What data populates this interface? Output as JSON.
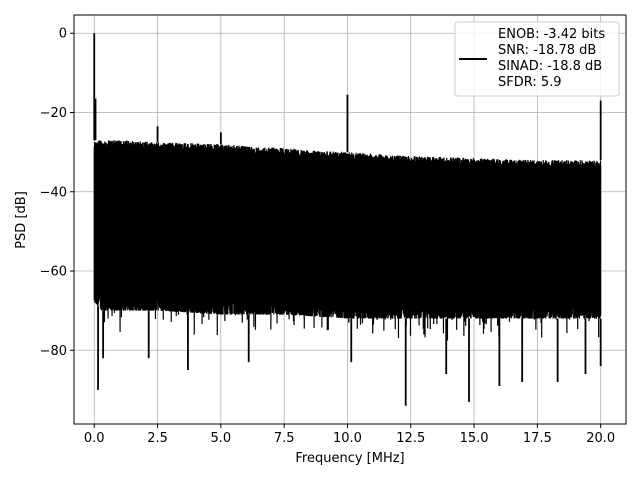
{
  "chart_data": {
    "type": "line",
    "title": "",
    "xlabel": "Frequency [MHz]",
    "ylabel": "PSD [dB]",
    "xlim": [
      -0.8,
      21.0
    ],
    "ylim": [
      -98.6,
      4.6
    ],
    "x_ticks": [
      0.0,
      2.5,
      5.0,
      7.5,
      10.0,
      12.5,
      15.0,
      17.5,
      20.0
    ],
    "x_tick_labels": [
      "0.0",
      "2.5",
      "5.0",
      "7.5",
      "10.0",
      "12.5",
      "15.0",
      "17.5",
      "20.0"
    ],
    "y_ticks": [
      0,
      -20,
      -40,
      -60,
      -80
    ],
    "y_tick_labels": [
      "0",
      "−20",
      "−40",
      "−60",
      "−80"
    ],
    "grid": true,
    "legend_placement": "top-right",
    "series": [
      {
        "name": "ENOB: -3.42 bits\nSNR: -18.78 dB\nSINAD: -18.8 dB\nSFDR: 5.9",
        "legend_lines": [
          "ENOB: -3.42 bits",
          "SNR: -18.78 dB",
          "SINAD: -18.8 dB",
          "SFDR: 5.9"
        ],
        "color": "#000000",
        "x_range": [
          0.0,
          20.0
        ],
        "upper_envelope": {
          "x": [
            0.0,
            0.3,
            1.0,
            2.5,
            5.0,
            7.5,
            10.0,
            12.5,
            15.0,
            17.5,
            20.0
          ],
          "y": [
            -27,
            -27,
            -27,
            -27.5,
            -28,
            -29,
            -30,
            -31,
            -31.5,
            -32,
            -32
          ]
        },
        "lower_envelope": {
          "x": [
            0.0,
            0.3,
            1.0,
            2.5,
            5.0,
            7.5,
            10.0,
            12.5,
            15.0,
            17.5,
            20.0
          ],
          "y": [
            -68,
            -70,
            -70,
            -70,
            -71,
            -71,
            -72,
            -72,
            -72,
            -72,
            -72
          ]
        },
        "peaks": [
          {
            "x": 0.0,
            "y": 0.0
          },
          {
            "x": 0.05,
            "y": -16.5
          },
          {
            "x": 2.5,
            "y": -23.5
          },
          {
            "x": 5.0,
            "y": -25.0
          },
          {
            "x": 10.0,
            "y": -15.5
          },
          {
            "x": 20.0,
            "y": -17.0
          }
        ],
        "dips": [
          {
            "x": 0.15,
            "y": -90
          },
          {
            "x": 0.35,
            "y": -82
          },
          {
            "x": 2.15,
            "y": -82
          },
          {
            "x": 3.7,
            "y": -85
          },
          {
            "x": 6.1,
            "y": -83
          },
          {
            "x": 10.15,
            "y": -83
          },
          {
            "x": 12.3,
            "y": -94
          },
          {
            "x": 13.9,
            "y": -86
          },
          {
            "x": 14.8,
            "y": -93
          },
          {
            "x": 16.0,
            "y": -89
          },
          {
            "x": 16.9,
            "y": -88
          },
          {
            "x": 18.3,
            "y": -88
          },
          {
            "x": 19.4,
            "y": -86
          },
          {
            "x": 20.0,
            "y": -84
          }
        ]
      }
    ]
  }
}
